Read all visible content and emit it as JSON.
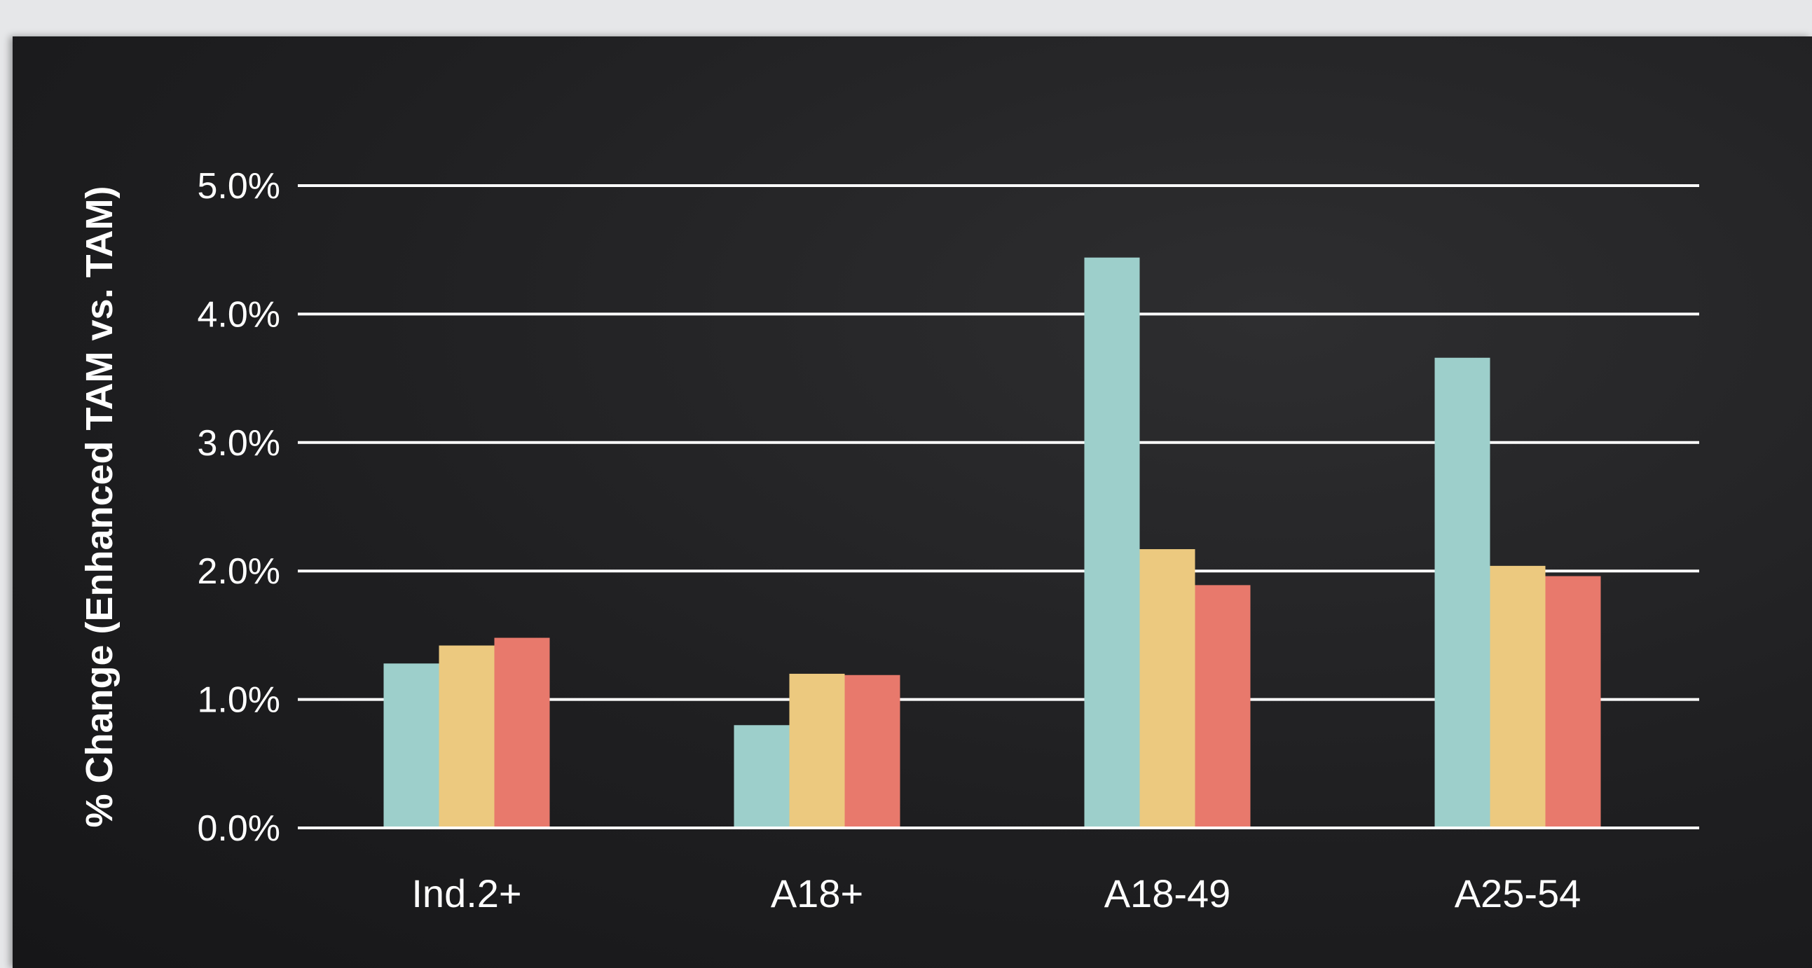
{
  "chart_data": {
    "type": "bar",
    "ylabel": "% Change (Enhanced TAM vs. TAM)",
    "xlabel": "",
    "ylim": [
      0,
      5
    ],
    "yticks": [
      0,
      1,
      2,
      3,
      4,
      5
    ],
    "ytick_labels": [
      "0.0%",
      "1.0%",
      "2.0%",
      "3.0%",
      "4.0%",
      "5.0%"
    ],
    "categories": [
      "Ind.2+",
      "A18+",
      "A18-49",
      "A25-54"
    ],
    "series": [
      {
        "color": "#9dcfcb",
        "values": [
          1.28,
          0.8,
          4.44,
          3.66
        ]
      },
      {
        "color": "#ecc97f",
        "values": [
          1.42,
          1.2,
          2.17,
          2.04
        ]
      },
      {
        "color": "#e8796c",
        "values": [
          1.48,
          1.19,
          1.89,
          1.96
        ]
      }
    ],
    "grid": true,
    "legend": "none"
  },
  "colors": {
    "background": "#1f1f21",
    "frame": "#e6e7e9",
    "gridline": "#ffffff",
    "text": "#ffffff"
  }
}
